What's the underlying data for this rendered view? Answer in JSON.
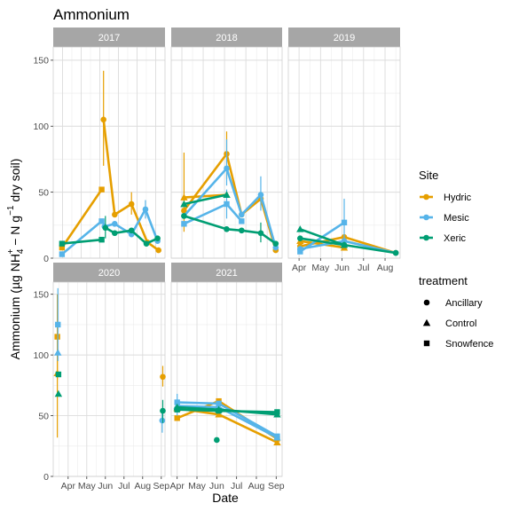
{
  "chart_data": {
    "type": "line",
    "title": "Ammonium",
    "xlabel": "Date",
    "ylabel_parts": [
      "Ammonium (",
      "µg NH",
      "4",
      "+",
      " − N g",
      "−1",
      " dry soil)"
    ],
    "ylim": [
      0,
      160
    ],
    "yticks": [
      0,
      50,
      100,
      150
    ],
    "colors": {
      "Hydric": "#E69F00",
      "Mesic": "#56B4E9",
      "Xeric": "#009E73"
    },
    "legend_site": {
      "title": "Site",
      "items": [
        "Hydric",
        "Mesic",
        "Xeric"
      ]
    },
    "legend_treatment": {
      "title": "treatment",
      "items": [
        {
          "label": "Ancillary",
          "shape": "circle"
        },
        {
          "label": "Control",
          "shape": "triangle"
        },
        {
          "label": "Snowfence",
          "shape": "square"
        }
      ]
    },
    "panels": [
      {
        "label": "2017",
        "xlim": [
          3.5,
          9.5
        ],
        "xticks": [
          {
            "v": 4,
            "label": "Apr"
          },
          {
            "v": 5,
            "label": "May"
          },
          {
            "v": 6,
            "label": "Jun"
          },
          {
            "v": 7,
            "label": "Jul"
          },
          {
            "v": 8,
            "label": "Aug"
          },
          {
            "v": 9,
            "label": "Sep"
          }
        ],
        "series": [
          {
            "site": "Hydric",
            "treatment": "Snowfence",
            "points": [
              {
                "x": 3.97,
                "y": 8
              },
              {
                "x": 6.1,
                "y": 52
              }
            ]
          },
          {
            "site": "Hydric",
            "treatment": "Ancillary",
            "points": [
              {
                "x": 6.2,
                "y": 105,
                "lo": 70,
                "hi": 142
              },
              {
                "x": 6.8,
                "y": 33
              },
              {
                "x": 7.7,
                "y": 41,
                "lo": 33,
                "hi": 50
              },
              {
                "x": 8.55,
                "y": 12
              },
              {
                "x": 9.15,
                "y": 6
              }
            ]
          },
          {
            "site": "Mesic",
            "treatment": "Snowfence",
            "points": [
              {
                "x": 3.97,
                "y": 3
              },
              {
                "x": 6.1,
                "y": 28
              }
            ]
          },
          {
            "site": "Mesic",
            "treatment": "Ancillary",
            "points": [
              {
                "x": 6.25,
                "y": 24
              },
              {
                "x": 6.8,
                "y": 26
              },
              {
                "x": 7.7,
                "y": 18
              },
              {
                "x": 8.45,
                "y": 37,
                "lo": 30,
                "hi": 44
              },
              {
                "x": 9.1,
                "y": 13
              }
            ]
          },
          {
            "site": "Xeric",
            "treatment": "Snowfence",
            "points": [
              {
                "x": 3.97,
                "y": 11
              },
              {
                "x": 6.1,
                "y": 14
              }
            ]
          },
          {
            "site": "Xeric",
            "treatment": "Ancillary",
            "points": [
              {
                "x": 6.3,
                "y": 23,
                "lo": 15,
                "hi": 32
              },
              {
                "x": 6.8,
                "y": 19
              },
              {
                "x": 7.7,
                "y": 21
              },
              {
                "x": 8.5,
                "y": 11
              },
              {
                "x": 9.1,
                "y": 15
              }
            ]
          }
        ]
      },
      {
        "label": "2018",
        "xlim": [
          3.5,
          8.7
        ],
        "xticks": [
          {
            "v": 4,
            "label": "Apr"
          },
          {
            "v": 5,
            "label": "May"
          },
          {
            "v": 6,
            "label": "Jun"
          },
          {
            "v": 7,
            "label": "Jul"
          },
          {
            "v": 8,
            "label": "Aug"
          }
        ],
        "series": [
          {
            "site": "Hydric",
            "treatment": "Control",
            "points": [
              {
                "x": 4.1,
                "y": 46,
                "lo": 20,
                "hi": 80
              },
              {
                "x": 6.1,
                "y": 48
              }
            ]
          },
          {
            "site": "Hydric",
            "treatment": "Ancillary",
            "points": [
              {
                "x": 4.1,
                "y": 36
              },
              {
                "x": 6.1,
                "y": 79,
                "lo": 60,
                "hi": 96
              },
              {
                "x": 6.8,
                "y": 33
              },
              {
                "x": 7.7,
                "y": 45
              },
              {
                "x": 8.4,
                "y": 6
              }
            ]
          },
          {
            "site": "Mesic",
            "treatment": "Snowfence",
            "points": [
              {
                "x": 4.1,
                "y": 26
              },
              {
                "x": 6.1,
                "y": 41,
                "lo": 30,
                "hi": 52
              },
              {
                "x": 6.8,
                "y": 28
              }
            ]
          },
          {
            "site": "Mesic",
            "treatment": "Ancillary",
            "points": [
              {
                "x": 4.1,
                "y": 32
              },
              {
                "x": 6.1,
                "y": 68,
                "lo": 55,
                "hi": 90
              },
              {
                "x": 6.8,
                "y": 33
              },
              {
                "x": 7.7,
                "y": 48,
                "lo": 36,
                "hi": 62
              },
              {
                "x": 8.4,
                "y": 8
              }
            ]
          },
          {
            "site": "Xeric",
            "treatment": "Control",
            "points": [
              {
                "x": 4.1,
                "y": 41
              },
              {
                "x": 6.1,
                "y": 48
              }
            ]
          },
          {
            "site": "Xeric",
            "treatment": "Ancillary",
            "points": [
              {
                "x": 4.1,
                "y": 32
              },
              {
                "x": 6.1,
                "y": 22
              },
              {
                "x": 6.8,
                "y": 21
              },
              {
                "x": 7.7,
                "y": 19,
                "lo": 12,
                "hi": 27
              },
              {
                "x": 8.4,
                "y": 11
              }
            ]
          }
        ]
      },
      {
        "label": "2019",
        "xlim": [
          3.5,
          8.7
        ],
        "xticks": [
          {
            "v": 4,
            "label": "Apr"
          },
          {
            "v": 5,
            "label": "May"
          },
          {
            "v": 6,
            "label": "Jun"
          },
          {
            "v": 7,
            "label": "Jul"
          },
          {
            "v": 8,
            "label": "Aug"
          }
        ],
        "series": [
          {
            "site": "Hydric",
            "treatment": "Control",
            "points": [
              {
                "x": 4.05,
                "y": 13
              },
              {
                "x": 6.1,
                "y": 8
              }
            ]
          },
          {
            "site": "Hydric",
            "treatment": "Ancillary",
            "points": [
              {
                "x": 4.05,
                "y": 9
              },
              {
                "x": 6.1,
                "y": 16
              },
              {
                "x": 8.5,
                "y": 4
              }
            ]
          },
          {
            "site": "Mesic",
            "treatment": "Snowfence",
            "points": [
              {
                "x": 4.05,
                "y": 5
              },
              {
                "x": 6.1,
                "y": 27,
                "lo": 12,
                "hi": 45
              }
            ]
          },
          {
            "site": "Mesic",
            "treatment": "Ancillary",
            "points": [
              {
                "x": 4.05,
                "y": 7
              },
              {
                "x": 6.1,
                "y": 13
              },
              {
                "x": 8.5,
                "y": 4
              }
            ]
          },
          {
            "site": "Xeric",
            "treatment": "Control",
            "points": [
              {
                "x": 4.05,
                "y": 22
              },
              {
                "x": 6.1,
                "y": 10
              }
            ]
          },
          {
            "site": "Xeric",
            "treatment": "Ancillary",
            "points": [
              {
                "x": 4.05,
                "y": 15
              },
              {
                "x": 6.1,
                "y": 10
              },
              {
                "x": 8.5,
                "y": 4
              }
            ]
          }
        ]
      },
      {
        "label": "2020",
        "xlim": [
          3.2,
          9.2
        ],
        "xticks": [
          {
            "v": 4,
            "label": "Apr"
          },
          {
            "v": 5,
            "label": "May"
          },
          {
            "v": 6,
            "label": "Jun"
          },
          {
            "v": 7,
            "label": "Jul"
          },
          {
            "v": 8,
            "label": "Aug"
          },
          {
            "v": 9,
            "label": "Sep"
          }
        ],
        "series": [
          {
            "site": "Hydric",
            "treatment": "Snowfence",
            "points": [
              {
                "x": 3.42,
                "y": 115,
                "lo": 80,
                "hi": 150
              }
            ]
          },
          {
            "site": "Hydric",
            "treatment": "Control",
            "points": [
              {
                "x": 3.42,
                "y": 85,
                "lo": 32,
                "hi": 135
              }
            ]
          },
          {
            "site": "Hydric",
            "treatment": "Ancillary",
            "points": [
              {
                "x": 9.08,
                "y": 82,
                "lo": 74,
                "hi": 91
              }
            ]
          },
          {
            "site": "Mesic",
            "treatment": "Snowfence",
            "points": [
              {
                "x": 3.45,
                "y": 125,
                "lo": 95,
                "hi": 155
              }
            ]
          },
          {
            "site": "Mesic",
            "treatment": "Control",
            "points": [
              {
                "x": 3.45,
                "y": 102
              }
            ]
          },
          {
            "site": "Mesic",
            "treatment": "Ancillary",
            "points": [
              {
                "x": 9.05,
                "y": 46,
                "lo": 36,
                "hi": 55
              }
            ]
          },
          {
            "site": "Xeric",
            "treatment": "Snowfence",
            "points": [
              {
                "x": 3.48,
                "y": 84
              }
            ]
          },
          {
            "site": "Xeric",
            "treatment": "Control",
            "points": [
              {
                "x": 3.48,
                "y": 68
              }
            ]
          },
          {
            "site": "Xeric",
            "treatment": "Ancillary",
            "points": [
              {
                "x": 9.08,
                "y": 54,
                "lo": 44,
                "hi": 63
              }
            ]
          }
        ]
      },
      {
        "label": "2021",
        "xlim": [
          3.7,
          9.3
        ],
        "xticks": [
          {
            "v": 4,
            "label": "Apr"
          },
          {
            "v": 5,
            "label": "May"
          },
          {
            "v": 6,
            "label": "Jun"
          },
          {
            "v": 7,
            "label": "Jul"
          },
          {
            "v": 8,
            "label": "Aug"
          },
          {
            "v": 9,
            "label": "Sep"
          }
        ],
        "series": [
          {
            "site": "Hydric",
            "treatment": "Snowfence",
            "points": [
              {
                "x": 4.0,
                "y": 48
              },
              {
                "x": 6.1,
                "y": 62
              },
              {
                "x": 9.05,
                "y": 31
              }
            ]
          },
          {
            "site": "Hydric",
            "treatment": "Control",
            "points": [
              {
                "x": 4.0,
                "y": 56
              },
              {
                "x": 6.1,
                "y": 51
              },
              {
                "x": 9.05,
                "y": 28
              }
            ]
          },
          {
            "site": "Mesic",
            "treatment": "Snowfence",
            "points": [
              {
                "x": 4.0,
                "y": 61
              },
              {
                "x": 6.1,
                "y": 60
              },
              {
                "x": 9.05,
                "y": 33
              }
            ]
          },
          {
            "site": "Mesic",
            "treatment": "Control",
            "points": [
              {
                "x": 4.0,
                "y": 58,
                "lo": 50,
                "hi": 68
              },
              {
                "x": 6.1,
                "y": 57
              },
              {
                "x": 9.05,
                "y": 32
              }
            ]
          },
          {
            "site": "Xeric",
            "treatment": "Snowfence",
            "points": [
              {
                "x": 4.0,
                "y": 55
              },
              {
                "x": 6.1,
                "y": 54
              },
              {
                "x": 9.05,
                "y": 53
              }
            ]
          },
          {
            "site": "Xeric",
            "treatment": "Control",
            "points": [
              {
                "x": 4.0,
                "y": 57
              },
              {
                "x": 6.1,
                "y": 55
              },
              {
                "x": 9.05,
                "y": 51
              }
            ]
          },
          {
            "site": "Xeric",
            "treatment": "Ancillary",
            "points": [
              {
                "x": 6.0,
                "y": 30
              }
            ]
          }
        ]
      }
    ]
  }
}
